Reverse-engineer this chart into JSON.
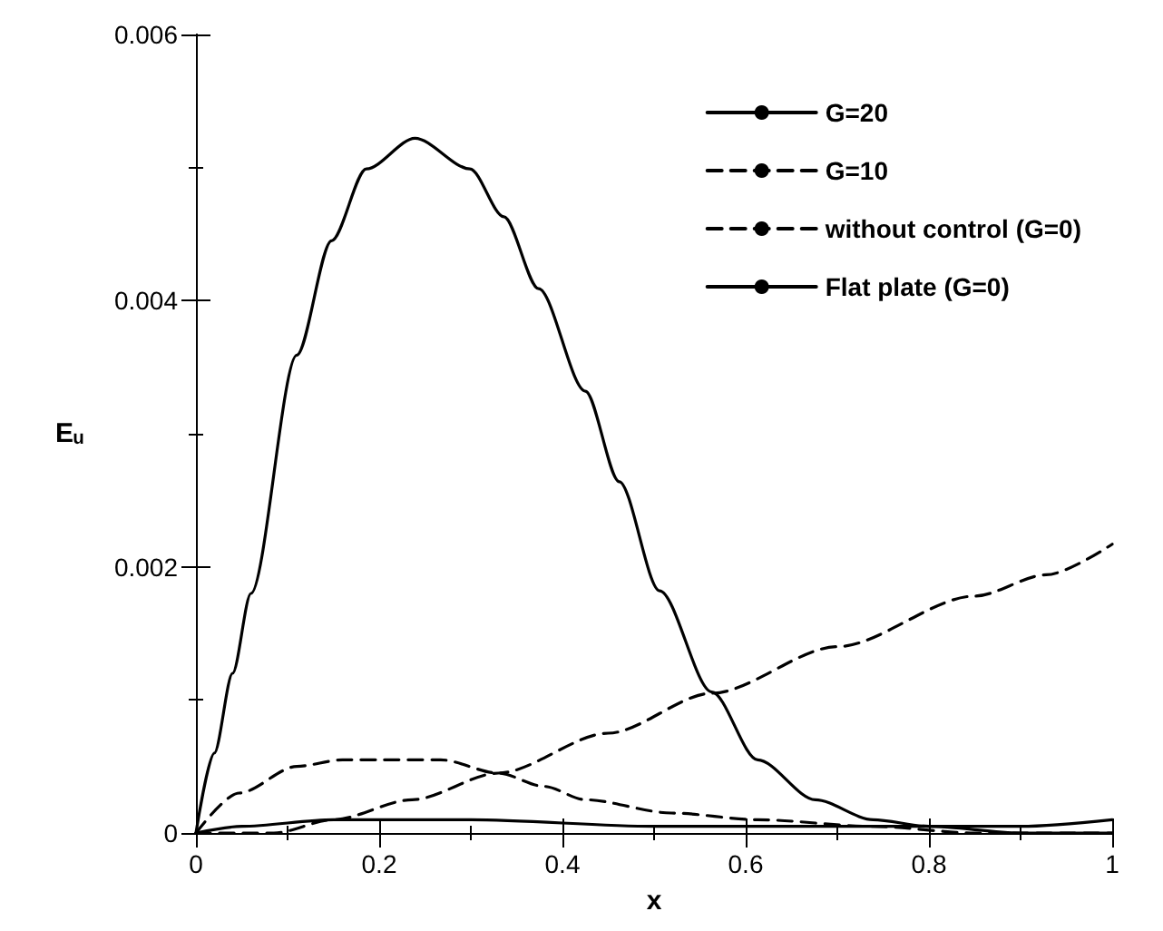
{
  "chart_data": {
    "type": "line",
    "xlabel": "x",
    "ylabel": "Eᵤ",
    "xlim": [
      0,
      1
    ],
    "ylim": [
      0,
      0.006
    ],
    "xticks": [
      0,
      0.2,
      0.4,
      0.6,
      0.8,
      1
    ],
    "yticks": [
      0,
      0.002,
      0.004,
      0.006
    ],
    "grid": false,
    "legend": "top right",
    "marker": "none",
    "series": [
      {
        "name": "G=20",
        "color": "#000000",
        "line_style": "solid",
        "x": [
          0,
          0.05,
          0.15,
          0.3,
          0.5,
          0.7,
          0.9,
          1
        ],
        "values": [
          0,
          5e-05,
          0.0001,
          0.0001,
          5e-05,
          5e-05,
          5e-05,
          0.0001
        ]
      },
      {
        "name": "G=10",
        "color": "#000000",
        "line_style": "dashed",
        "x": [
          0,
          0.047,
          0.11,
          0.16,
          0.204,
          0.267,
          0.33,
          0.38,
          0.425,
          0.519,
          0.613,
          0.739,
          0.85,
          1
        ],
        "values": [
          0,
          0.0003,
          0.0005,
          0.00055,
          0.00055,
          0.00055,
          0.00045,
          0.00035,
          0.00025,
          0.00015,
          0.0001,
          5e-05,
          0,
          0
        ]
      },
      {
        "name": "without control (G=0)",
        "color": "#000000",
        "line_style": "dashed",
        "x": [
          0,
          0.05,
          0.085,
          0.15,
          0.236,
          0.33,
          0.45,
          0.563,
          0.7,
          0.85,
          0.928,
          1
        ],
        "values": [
          0,
          0,
          0,
          0.0001,
          0.00025,
          0.00045,
          0.00075,
          0.00105,
          0.0014,
          0.00178,
          0.00194,
          0.00217
        ]
      },
      {
        "name": "Flat plate (G=0)",
        "color": "#000000",
        "line_style": "solid",
        "x": [
          0,
          0.02,
          0.04,
          0.06,
          0.11,
          0.148,
          0.186,
          0.239,
          0.299,
          0.336,
          0.374,
          0.425,
          0.462,
          0.506,
          0.563,
          0.613,
          0.676,
          0.739,
          0.8,
          0.9,
          1
        ],
        "values": [
          0,
          0.0006,
          0.0012,
          0.0018,
          0.00359,
          0.00445,
          0.00499,
          0.00522,
          0.00499,
          0.00463,
          0.00409,
          0.00332,
          0.00264,
          0.00182,
          0.00106,
          0.00055,
          0.00025,
          0.0001,
          5e-05,
          0,
          0
        ]
      }
    ]
  }
}
